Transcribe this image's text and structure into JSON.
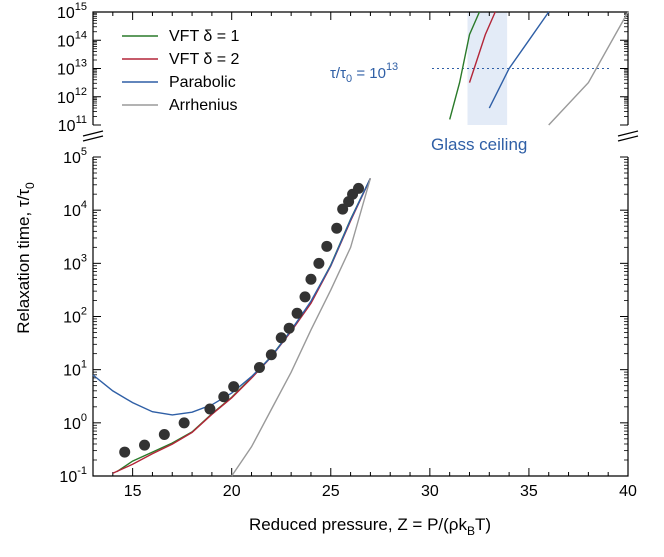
{
  "chart_data": {
    "type": "line",
    "xlabel_main": "Reduced pressure, Z = P/(ρk",
    "xlabel_sub": "B",
    "xlabel_tail": "T)",
    "ylabel_main": "Relaxation time, τ/τ",
    "ylabel_sub": "0",
    "xlim": [
      13,
      40
    ],
    "x_ticks": [
      15,
      20,
      25,
      30,
      35,
      40
    ],
    "lower_panel": {
      "ylim_exp": [
        -1,
        5
      ],
      "y_ticks_exp": [
        -1,
        0,
        1,
        2,
        3,
        4,
        5
      ]
    },
    "upper_panel": {
      "ylim_exp": [
        11,
        15
      ],
      "y_ticks_exp": [
        11,
        12,
        13,
        14,
        15
      ]
    },
    "tick_base": "10",
    "legend": {
      "position": "top-left",
      "entries": [
        {
          "name": "VFT δ = 1",
          "color": "#2a7a2a"
        },
        {
          "name": "VFT δ = 2",
          "color": "#b32538"
        },
        {
          "name": "Parabolic",
          "color": "#2f5fa6"
        },
        {
          "name": "Arrhenius",
          "color": "#9a9a9a"
        }
      ]
    },
    "annotations": {
      "tau_ref_main": "τ/τ",
      "tau_ref_sub": "0",
      "tau_ref_mid": " = 10",
      "tau_ref_sup": "13",
      "tau_ref_value_exp": 13,
      "glass_ceiling": "Glass ceiling",
      "glass_ceiling_band_x": [
        31.9,
        33.9
      ]
    },
    "scatter": {
      "name": "data",
      "color": "#333333",
      "points": [
        [
          14.6,
          -0.55
        ],
        [
          15.6,
          -0.42
        ],
        [
          16.6,
          -0.22
        ],
        [
          17.6,
          0.0
        ],
        [
          18.9,
          0.26
        ],
        [
          19.6,
          0.49
        ],
        [
          20.1,
          0.68
        ],
        [
          21.4,
          1.04
        ],
        [
          22.0,
          1.28
        ],
        [
          22.5,
          1.6
        ],
        [
          22.9,
          1.78
        ],
        [
          23.3,
          2.06
        ],
        [
          23.7,
          2.37
        ],
        [
          24.0,
          2.7
        ],
        [
          24.4,
          3.0
        ],
        [
          24.8,
          3.32
        ],
        [
          25.3,
          3.66
        ],
        [
          25.6,
          4.02
        ],
        [
          25.9,
          4.16
        ],
        [
          26.1,
          4.3
        ],
        [
          26.4,
          4.41
        ]
      ]
    },
    "series": [
      {
        "name": "VFT δ = 1",
        "color": "#2a7a2a",
        "x": [
          14.2,
          15,
          16,
          17,
          18,
          19,
          20,
          21,
          22,
          23,
          24,
          25,
          26,
          27,
          28,
          29,
          30,
          31,
          31.5,
          32,
          32.5
        ],
        "y": [
          -0.92,
          -0.72,
          -0.55,
          -0.38,
          -0.17,
          0.17,
          0.48,
          0.85,
          1.25,
          1.74,
          2.27,
          2.97,
          3.83,
          4.6,
          6.0,
          7.5,
          9.2,
          11.2,
          12.5,
          14.2,
          15
        ]
      },
      {
        "name": "VFT δ = 2",
        "color": "#b32538",
        "x": [
          14.0,
          15,
          16,
          17,
          18,
          19,
          20,
          21,
          22,
          23,
          24,
          25,
          26,
          27,
          28,
          29,
          30,
          31,
          32,
          32.8,
          33.3
        ],
        "y": [
          -0.95,
          -0.78,
          -0.58,
          -0.4,
          -0.18,
          0.16,
          0.47,
          0.84,
          1.24,
          1.72,
          2.25,
          2.95,
          3.8,
          4.6,
          5.8,
          7.2,
          8.7,
          10.5,
          12.5,
          14.2,
          15
        ]
      },
      {
        "name": "Parabolic",
        "color": "#2f5fa6",
        "x": [
          13.0,
          14,
          15,
          16,
          17,
          18,
          19,
          20,
          21,
          22,
          23,
          24,
          25,
          26,
          27,
          28,
          29,
          30,
          31,
          32,
          33,
          34,
          35,
          36
        ],
        "y": [
          0.9,
          0.6,
          0.38,
          0.21,
          0.15,
          0.2,
          0.34,
          0.56,
          0.87,
          1.24,
          1.74,
          2.29,
          2.96,
          3.82,
          4.6,
          5.6,
          6.6,
          7.7,
          8.9,
          10.2,
          11.6,
          13.0,
          14.0,
          15
        ]
      },
      {
        "name": "Arrhenius",
        "color": "#9a9a9a",
        "x": [
          20.0,
          21,
          22,
          23,
          24,
          25,
          26,
          27,
          28,
          30,
          32,
          34,
          36,
          38,
          40
        ],
        "y": [
          -1,
          -0.45,
          0.25,
          0.95,
          1.75,
          2.5,
          3.3,
          4.6,
          5.3,
          6.7,
          8.1,
          9.6,
          11.0,
          12.5,
          15
        ]
      }
    ]
  }
}
